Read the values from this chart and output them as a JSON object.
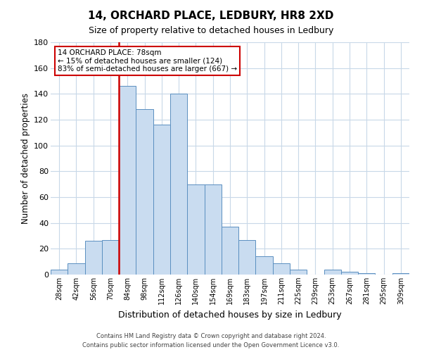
{
  "title": "14, ORCHARD PLACE, LEDBURY, HR8 2XD",
  "subtitle": "Size of property relative to detached houses in Ledbury",
  "xlabel": "Distribution of detached houses by size in Ledbury",
  "ylabel": "Number of detached properties",
  "bar_labels": [
    "28sqm",
    "42sqm",
    "56sqm",
    "70sqm",
    "84sqm",
    "98sqm",
    "112sqm",
    "126sqm",
    "140sqm",
    "154sqm",
    "169sqm",
    "183sqm",
    "197sqm",
    "211sqm",
    "225sqm",
    "239sqm",
    "253sqm",
    "267sqm",
    "281sqm",
    "295sqm",
    "309sqm"
  ],
  "bar_values": [
    4,
    9,
    26,
    27,
    146,
    128,
    116,
    140,
    70,
    70,
    37,
    27,
    14,
    9,
    4,
    0,
    4,
    2,
    1,
    0,
    1
  ],
  "bar_color": "#c9dcf0",
  "bar_edge_color": "#5a8fc0",
  "vline_color": "#cc0000",
  "vline_index": 4,
  "ylim": [
    0,
    180
  ],
  "yticks": [
    0,
    20,
    40,
    60,
    80,
    100,
    120,
    140,
    160,
    180
  ],
  "annotation_title": "14 ORCHARD PLACE: 78sqm",
  "annotation_line1": "← 15% of detached houses are smaller (124)",
  "annotation_line2": "83% of semi-detached houses are larger (667) →",
  "annotation_box_color": "#ffffff",
  "annotation_box_edge": "#cc0000",
  "footer1": "Contains HM Land Registry data © Crown copyright and database right 2024.",
  "footer2": "Contains public sector information licensed under the Open Government Licence v3.0.",
  "background_color": "#ffffff",
  "grid_color": "#c8d8e8"
}
